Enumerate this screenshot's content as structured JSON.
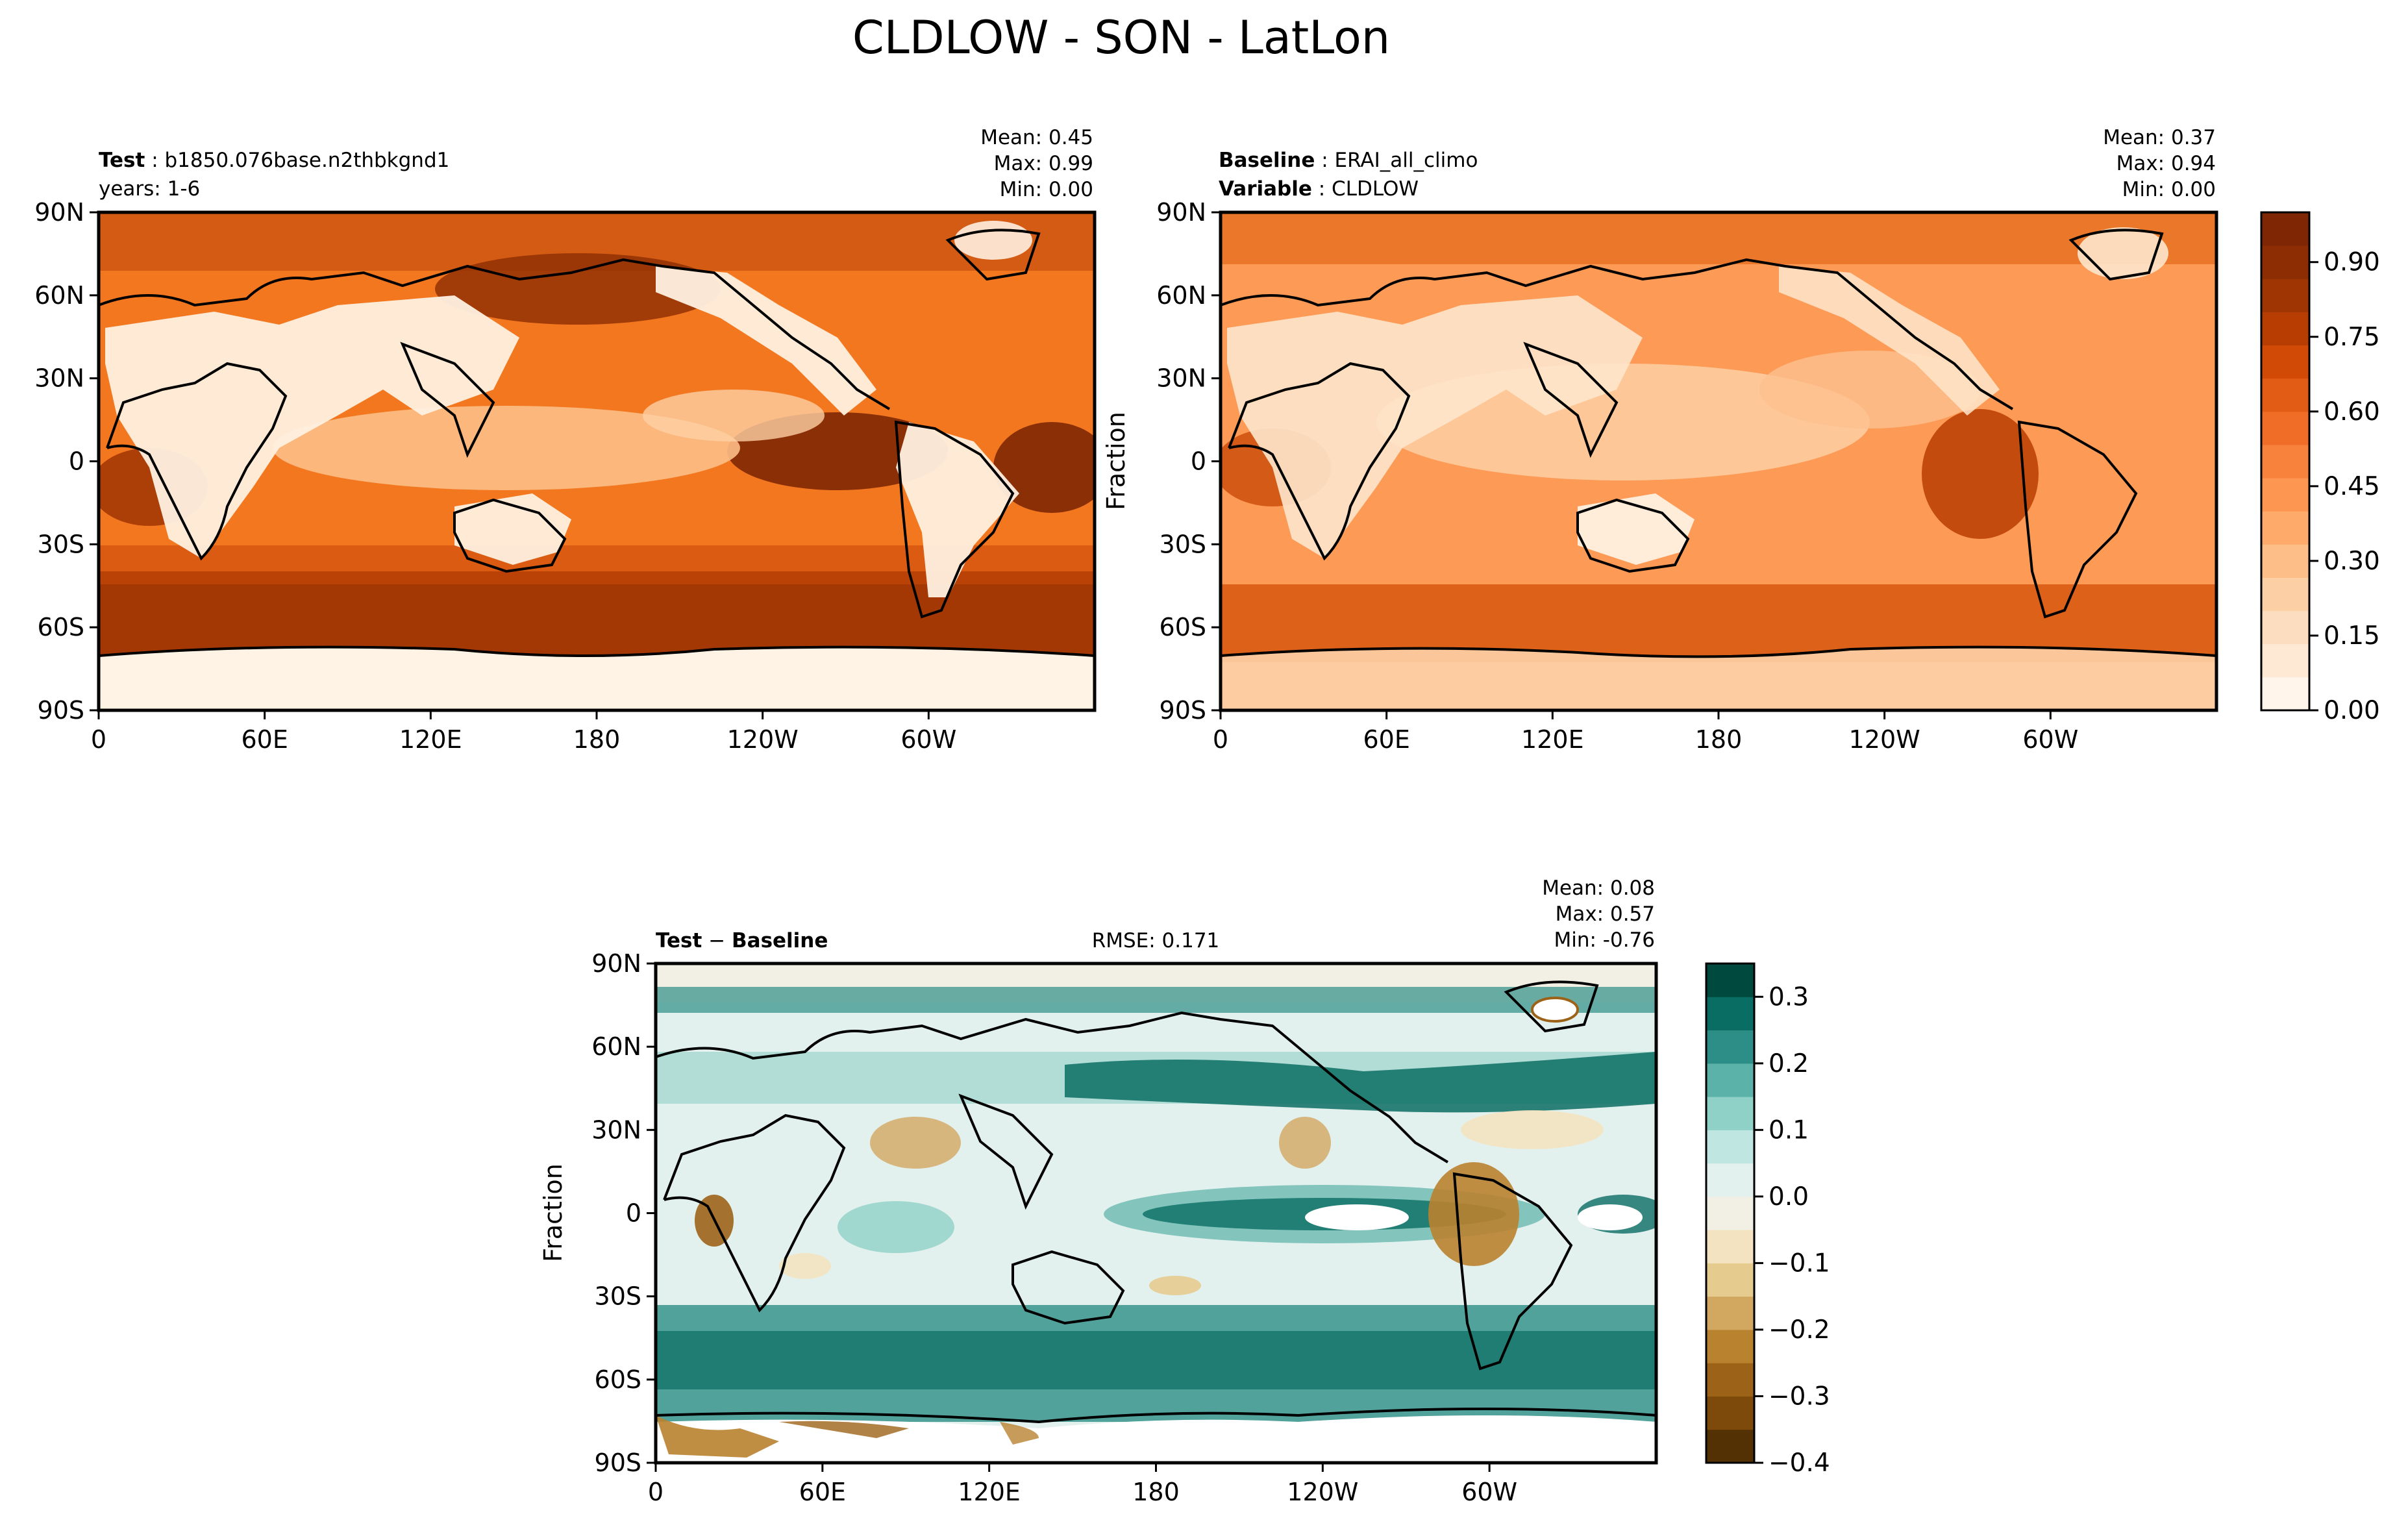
{
  "figure": {
    "title": "CLDLOW - SON - LatLon"
  },
  "chart_data": [
    {
      "type": "heatmap",
      "panel": "test",
      "title_left_bold": "Test",
      "title_left_value": ": b1850.076base.n2thbkgnd1",
      "subtitle": "years: 1-6",
      "stats": {
        "mean": "Mean:  0.45",
        "max": "Max:  0.99",
        "min": "Min:  0.00"
      },
      "xticks": [
        "0",
        "60E",
        "120E",
        "180",
        "120W",
        "60W"
      ],
      "yticks": [
        "90N",
        "60N",
        "30N",
        "0",
        "30S",
        "60S",
        "90S"
      ],
      "ylabel": "",
      "colormap": "Oranges",
      "range": [
        0,
        1
      ],
      "summary": {
        "mean": 0.45,
        "max": 0.99,
        "min": 0.0
      }
    },
    {
      "type": "heatmap",
      "panel": "baseline",
      "title_left_bold": "Baseline",
      "title_left_value": ": ERAI_all_climo",
      "subtitle_bold": "Variable",
      "subtitle_value": ": CLDLOW",
      "stats": {
        "mean": "Mean:  0.37",
        "max": "Max:  0.94",
        "min": "Min:  0.00"
      },
      "xticks": [
        "0",
        "60E",
        "120E",
        "180",
        "120W",
        "60W"
      ],
      "yticks": [
        "90N",
        "60N",
        "30N",
        "0",
        "30S",
        "60S",
        "90S"
      ],
      "ylabel": "Fraction",
      "colormap": "Oranges",
      "range": [
        0,
        1
      ],
      "summary": {
        "mean": 0.37,
        "max": 0.94,
        "min": 0.0
      }
    },
    {
      "type": "heatmap",
      "panel": "difference",
      "title_left_bold": "Test",
      "title_left_minus": " − ",
      "title_left_bold2": "Baseline",
      "title_center": "RMSE: 0.171",
      "stats": {
        "mean": "Mean:  0.08",
        "max": "Max:  0.57",
        "min": "Min: -0.76"
      },
      "xticks": [
        "0",
        "60E",
        "120E",
        "180",
        "120W",
        "60W"
      ],
      "yticks": [
        "90N",
        "60N",
        "30N",
        "0",
        "30S",
        "60S",
        "90S"
      ],
      "ylabel": "Fraction",
      "colormap": "BrBG",
      "range": [
        -0.4,
        0.35
      ],
      "summary": {
        "mean": 0.08,
        "max": 0.57,
        "min": -0.76,
        "rmse": 0.171
      }
    }
  ],
  "colorbars": {
    "main": {
      "ticks": [
        "0.00",
        "0.15",
        "0.30",
        "0.45",
        "0.60",
        "0.75",
        "0.90"
      ],
      "values": [
        0.0,
        0.15,
        0.3,
        0.45,
        0.6,
        0.75,
        0.9
      ],
      "range": [
        0,
        1
      ],
      "colors": [
        "#fff5eb",
        "#fee9d5",
        "#fdddbf",
        "#fdcfa4",
        "#fdbe87",
        "#fdaa6b",
        "#fd9651",
        "#f8823b",
        "#f06d27",
        "#e35c15",
        "#d14a06",
        "#b83d02",
        "#9e3503",
        "#8c2d04",
        "#7f2704"
      ]
    },
    "diff": {
      "ticks": [
        "0.3",
        "0.2",
        "0.1",
        "0.0",
        "−0.1",
        "−0.2",
        "−0.3",
        "−0.4"
      ],
      "values": [
        0.3,
        0.2,
        0.1,
        0.0,
        -0.1,
        -0.2,
        -0.3,
        -0.4
      ],
      "range": [
        -0.4,
        0.35
      ],
      "colors": [
        "#543005",
        "#7d4a0b",
        "#9c6318",
        "#b9822f",
        "#d2a860",
        "#e6cb8e",
        "#f3e3c1",
        "#f2efe4",
        "#e3f1ee",
        "#bfe6e1",
        "#8fd1c6",
        "#5ab2a8",
        "#2c8e86",
        "#0a6d63",
        "#00493f"
      ]
    }
  }
}
